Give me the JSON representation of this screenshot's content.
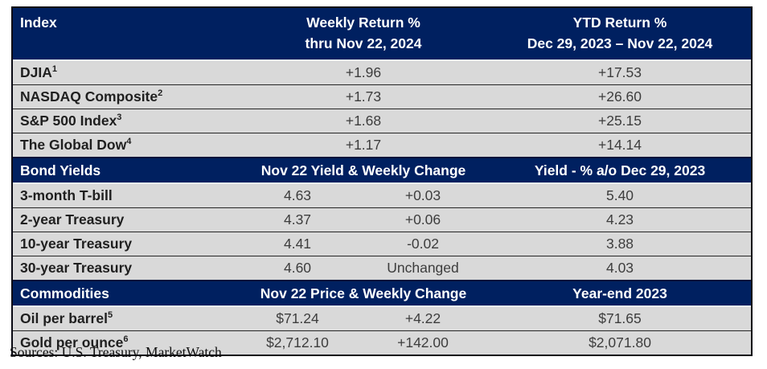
{
  "colors": {
    "header_navy": "#002060",
    "row_gray": "#d9d9d9",
    "header_text_white": "#ffffff",
    "label_text": "#1f1f1f",
    "value_text": "#3d3d3d",
    "outer_border": "#0a0a14"
  },
  "equities": {
    "header": {
      "col1": "Index",
      "col2_line1": "Weekly Return %",
      "col2_line2": "thru Nov 22, 2024",
      "col3_line1": "YTD Return %",
      "col3_line2": "Dec 29, 2023 – Nov 22, 2024"
    },
    "rows": [
      {
        "label": "DJIA",
        "sup": "1",
        "weekly": "+1.96",
        "ytd": "+17.53"
      },
      {
        "label": "NASDAQ Composite",
        "sup": "2",
        "weekly": "+1.73",
        "ytd": "+26.60"
      },
      {
        "label": "S&P 500 Index",
        "sup": "3",
        "weekly": "+1.68",
        "ytd": "+25.15"
      },
      {
        "label": "The Global Dow",
        "sup": "4",
        "weekly": "+1.17",
        "ytd": "+14.14"
      }
    ]
  },
  "bonds": {
    "header": {
      "col1": "Bond Yields",
      "col2": "Nov 22 Yield & Weekly Change",
      "col3": "Yield - % a/o Dec 29, 2023"
    },
    "rows": [
      {
        "label": "3-month T-bill",
        "value": "4.63",
        "change": "+0.03",
        "prior": "5.40"
      },
      {
        "label": "2-year Treasury",
        "value": "4.37",
        "change": "+0.06",
        "prior": "4.23"
      },
      {
        "label": "10-year Treasury",
        "value": "4.41",
        "change": "-0.02",
        "prior": "3.88"
      },
      {
        "label": "30-year Treasury",
        "value": "4.60",
        "change": "Unchanged",
        "prior": "4.03"
      }
    ]
  },
  "commodities": {
    "header": {
      "col1": "Commodities",
      "col2": "Nov 22 Price & Weekly Change",
      "col3": "Year-end 2023"
    },
    "rows": [
      {
        "label": "Oil per barrel",
        "sup": "5",
        "value": "$71.24",
        "change": "+4.22",
        "yearend": "$71.65"
      },
      {
        "label": "Gold per ounce",
        "sup": "6",
        "value": "$2,712.10",
        "change": "+142.00",
        "yearend": "$2,071.80"
      }
    ]
  },
  "source_line": "Sources: U.S. Treasury, MarketWatch",
  "chart_data": {
    "type": "table",
    "sections": [
      {
        "name": "Index",
        "columns": [
          "Index",
          "Weekly Return % thru Nov 22, 2024",
          "YTD Return % Dec 29, 2023 – Nov 22, 2024"
        ],
        "rows": [
          [
            "DJIA",
            1.96,
            17.53
          ],
          [
            "NASDAQ Composite",
            1.73,
            26.6
          ],
          [
            "S&P 500 Index",
            1.68,
            25.15
          ],
          [
            "The Global Dow",
            1.17,
            14.14
          ]
        ]
      },
      {
        "name": "Bond Yields",
        "columns": [
          "Bond Yields",
          "Nov 22 Yield",
          "Weekly Change",
          "Yield - % a/o Dec 29, 2023"
        ],
        "rows": [
          [
            "3-month T-bill",
            4.63,
            0.03,
            5.4
          ],
          [
            "2-year Treasury",
            4.37,
            0.06,
            4.23
          ],
          [
            "10-year Treasury",
            4.41,
            -0.02,
            3.88
          ],
          [
            "30-year Treasury",
            4.6,
            "Unchanged",
            4.03
          ]
        ]
      },
      {
        "name": "Commodities",
        "columns": [
          "Commodities",
          "Nov 22 Price",
          "Weekly Change",
          "Year-end 2023"
        ],
        "rows": [
          [
            "Oil per barrel",
            71.24,
            4.22,
            71.65
          ],
          [
            "Gold per ounce",
            2712.1,
            142.0,
            2071.8
          ]
        ]
      }
    ],
    "source": "Sources: U.S. Treasury, MarketWatch"
  }
}
